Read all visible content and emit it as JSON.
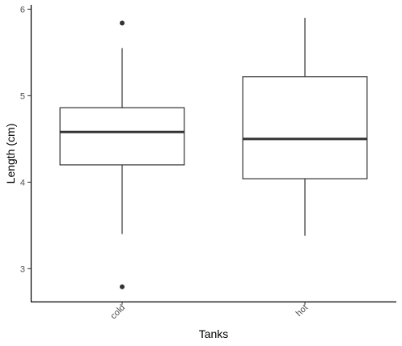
{
  "chart_data": {
    "type": "boxplot",
    "title": "",
    "xlabel": "Tanks",
    "ylabel": "Length (cm)",
    "ylim": [
      2.62,
      6.05
    ],
    "yticks": [
      3,
      4,
      5,
      6
    ],
    "grid": false,
    "categories": [
      "cold",
      "hot"
    ],
    "boxes": [
      {
        "category": "cold",
        "whisker_low": 3.4,
        "q1": 4.2,
        "median": 4.58,
        "q3": 4.86,
        "whisker_high": 5.55,
        "outliers": [
          5.84,
          2.79
        ]
      },
      {
        "category": "hot",
        "whisker_low": 3.38,
        "q1": 4.04,
        "median": 4.5,
        "q3": 5.22,
        "whisker_high": 5.9,
        "outliers": []
      }
    ],
    "colors": {
      "stroke": "#333333",
      "axis": "#000000",
      "tick_text": "#4d4d4d",
      "fill": "#ffffff"
    }
  }
}
